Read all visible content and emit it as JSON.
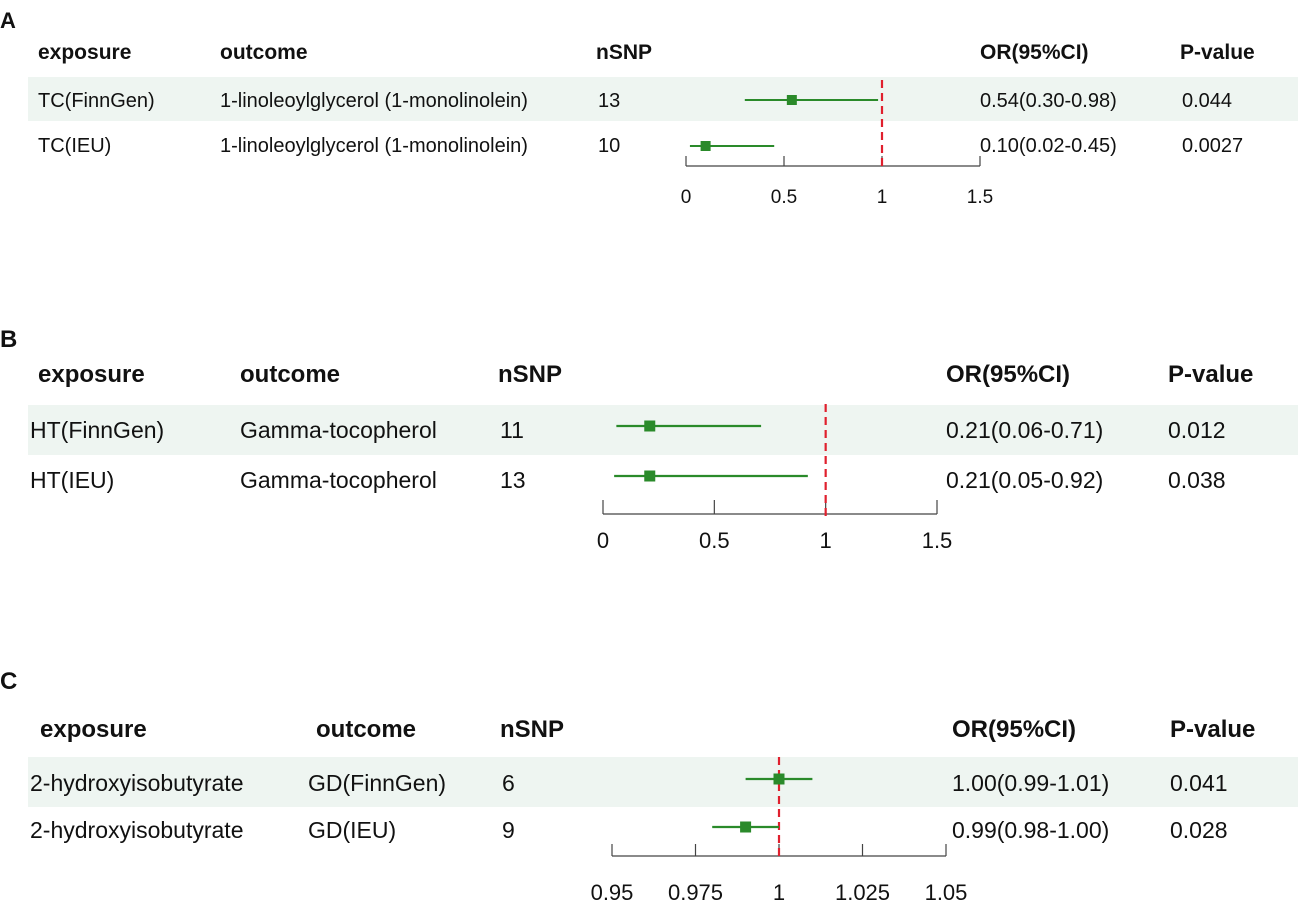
{
  "headers": {
    "exposure": "exposure",
    "outcome": "outcome",
    "nsnp": "nSNP",
    "or": "OR(95%CI)",
    "pvalue": "P-value"
  },
  "chart_data": [
    {
      "type": "forest",
      "panel_label": "A",
      "reference_line": 1,
      "xlim": [
        0,
        1.5
      ],
      "x_ticks": [
        0,
        0.5,
        1,
        1.5
      ],
      "x_tick_labels": [
        "0",
        "0.5",
        "1",
        "1.5"
      ],
      "rows": [
        {
          "exposure": "TC(FinnGen)",
          "outcome": "1-linoleoylglycerol (1-monolinolein)",
          "nsnp": "13",
          "or": 0.54,
          "lower": 0.3,
          "upper": 0.98,
          "or_text": "0.54(0.30-0.98)",
          "pvalue": "0.044"
        },
        {
          "exposure": "TC(IEU)",
          "outcome": "1-linoleoylglycerol (1-monolinolein)",
          "nsnp": "10",
          "or": 0.1,
          "lower": 0.02,
          "upper": 0.45,
          "or_text": "0.10(0.02-0.45)",
          "pvalue": "0.0027"
        }
      ]
    },
    {
      "type": "forest",
      "panel_label": "B",
      "reference_line": 1,
      "xlim": [
        0,
        1.5
      ],
      "x_ticks": [
        0,
        0.5,
        1,
        1.5
      ],
      "x_tick_labels": [
        "0",
        "0.5",
        "1",
        "1.5"
      ],
      "rows": [
        {
          "exposure": "HT(FinnGen)",
          "outcome": "Gamma-tocopherol",
          "nsnp": "11",
          "or": 0.21,
          "lower": 0.06,
          "upper": 0.71,
          "or_text": "0.21(0.06-0.71)",
          "pvalue": "0.012"
        },
        {
          "exposure": "HT(IEU)",
          "outcome": "Gamma-tocopherol",
          "nsnp": "13",
          "or": 0.21,
          "lower": 0.05,
          "upper": 0.92,
          "or_text": "0.21(0.05-0.92)",
          "pvalue": "0.038"
        }
      ]
    },
    {
      "type": "forest",
      "panel_label": "C",
      "reference_line": 1,
      "xlim": [
        0.95,
        1.05
      ],
      "x_ticks": [
        0.95,
        0.975,
        1,
        1.025,
        1.05
      ],
      "x_tick_labels": [
        "0.95",
        "0.975",
        "1",
        "1.025",
        "1.05"
      ],
      "rows": [
        {
          "exposure": "2-hydroxyisobutyrate",
          "outcome": "GD(FinnGen)",
          "nsnp": "6",
          "or": 1.0,
          "lower": 0.99,
          "upper": 1.01,
          "or_text": "1.00(0.99-1.01)",
          "pvalue": "0.041"
        },
        {
          "exposure": "2-hydroxyisobutyrate",
          "outcome": "GD(IEU)",
          "nsnp": "9",
          "or": 0.99,
          "lower": 0.98,
          "upper": 1.0,
          "or_text": "0.99(0.98-1.00)",
          "pvalue": "0.028"
        }
      ]
    }
  ],
  "colors": {
    "point": "#2a8a2a",
    "ci_line": "#2a8a2a",
    "reference": "#e0202e",
    "row_band": "#eef5f1",
    "axis": "#444444"
  }
}
